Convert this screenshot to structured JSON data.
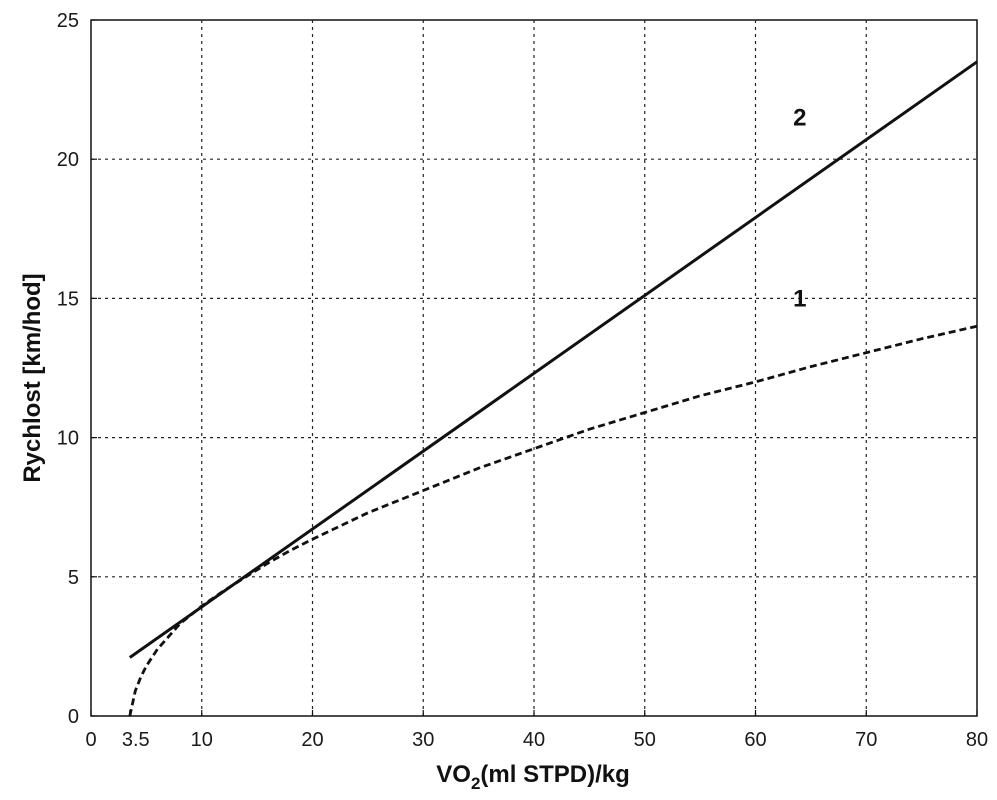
{
  "chart_data": {
    "type": "line",
    "xlabel_main": "VO",
    "xlabel_sub": "2",
    "xlabel_rest": "(ml STPD)/kg",
    "ylabel": "Rychlost [km/hod]",
    "xlim": [
      0,
      80
    ],
    "ylim": [
      0,
      25
    ],
    "x_ticks": [
      0,
      10,
      20,
      30,
      40,
      50,
      60,
      70,
      80
    ],
    "y_ticks": [
      0,
      5,
      10,
      15,
      20,
      25
    ],
    "extra_x_tick": {
      "value": 3.5,
      "label": "3.5"
    },
    "grid": true,
    "series": [
      {
        "name": "1",
        "style": "dashed",
        "points": [
          [
            3.5,
            0
          ],
          [
            4.0,
            0.9
          ],
          [
            4.5,
            1.4
          ],
          [
            5.0,
            1.8
          ],
          [
            6.0,
            2.4
          ],
          [
            7.0,
            2.85
          ],
          [
            8.0,
            3.3
          ],
          [
            10.0,
            3.95
          ],
          [
            12.0,
            4.5
          ],
          [
            14.0,
            5.0
          ],
          [
            16.0,
            5.5
          ],
          [
            18.0,
            5.95
          ],
          [
            20.0,
            6.35
          ],
          [
            25.0,
            7.3
          ],
          [
            30.0,
            8.1
          ],
          [
            35.0,
            8.9
          ],
          [
            40.0,
            9.6
          ],
          [
            45.0,
            10.3
          ],
          [
            50.0,
            10.9
          ],
          [
            55.0,
            11.5
          ],
          [
            60.0,
            12.0
          ],
          [
            65.0,
            12.55
          ],
          [
            70.0,
            13.05
          ],
          [
            75.0,
            13.55
          ],
          [
            80.0,
            14.0
          ]
        ],
        "label_pos": [
          64,
          15.0
        ]
      },
      {
        "name": "2",
        "style": "solid",
        "points": [
          [
            3.5,
            2.1
          ],
          [
            80.0,
            23.5
          ]
        ],
        "label_pos": [
          64,
          21.5
        ]
      }
    ]
  }
}
